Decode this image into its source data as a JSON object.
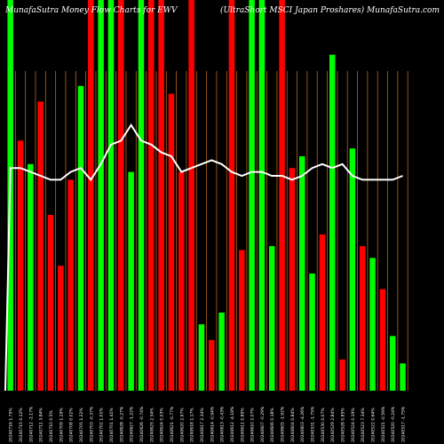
{
  "header": {
    "left": "MunafaSutra  Money Flow  Charts for EWV",
    "right": "(UltraShort MSCI Japan  Proshares) MunafaSutra.com"
  },
  "chart_data": {
    "type": "bar",
    "title": "MunafaSutra  Money Flow  Charts for EWV",
    "subtitle": "(UltraShort MSCI Japan  Proshares) MunafaSutra.com",
    "ylim": [
      0,
      100
    ],
    "categories": [
      "20240716 1.75%",
      "20240715 0.12%",
      "20240712 -2.17%",
      "20240711 3.84%",
      "20240710 0.5%",
      "20240709 1.19%",
      "20240708 0.02%",
      "20240705 1.22%",
      "20240703 -0.37%",
      "20240702 1.01%",
      "20240701 1.41%",
      "20240628 -0.27%",
      "20240627 -1.22%",
      "20240626 -0.74%",
      "20240625 2.54%",
      "20240624 0.03%",
      "20240621 -0.77%",
      "20240620 2.97%",
      "20240618 1.17%",
      "20240617 2.34%",
      "20240614 -0.94%",
      "20240613 -0.43%",
      "20240612 -4.18%",
      "20240611 0.89%",
      "20240610 2.07%",
      "20240607 -0.29%",
      "20240606 0.18%",
      "20240605 -1.92%",
      "20240604 0.84%",
      "20240603 -4.26%",
      "20240531 -1.75%",
      "20240530 0.07%",
      "20240529 2.84%",
      "20240528 0.85%",
      "20240524 0.19%",
      "20240523 7.34%",
      "20240522 0.64%",
      "20240521 -0.59%",
      "20240520 -0.24%",
      "20240517 -1.75%"
    ],
    "series": [
      {
        "values": [
          100,
          64,
          58,
          74,
          45,
          32,
          54,
          78,
          100,
          100,
          100,
          100,
          56,
          100,
          100,
          100,
          76,
          56,
          100,
          17,
          13,
          20,
          100,
          36,
          100,
          100,
          37,
          100,
          57,
          60,
          30,
          40,
          86,
          8,
          62,
          37,
          34,
          26,
          14,
          7
        ],
        "directions": [
          "up",
          "down",
          "up",
          "down",
          "down",
          "down",
          "down",
          "up",
          "down",
          "up",
          "up",
          "down",
          "up",
          "up",
          "down",
          "down",
          "down",
          "down",
          "down",
          "up",
          "down",
          "up",
          "down",
          "down",
          "up",
          "up",
          "up",
          "down",
          "down",
          "up",
          "up",
          "down",
          "up",
          "down",
          "up",
          "down",
          "up",
          "down",
          "up",
          "up"
        ],
        "colors": {
          "up": "#00ff00",
          "down": "#ff0000"
        }
      },
      {
        "name": "",
        "type": "line",
        "color": "#ffffff",
        "values": [
          57,
          57,
          56,
          55,
          54,
          54,
          56,
          57,
          54,
          58,
          63,
          64,
          68,
          64,
          63,
          61,
          60,
          56,
          57,
          58,
          59,
          58,
          56,
          55,
          56,
          56,
          55,
          55,
          54,
          55,
          57,
          58,
          57,
          58,
          55,
          54,
          54,
          54,
          54,
          55
        ]
      }
    ],
    "grid": "vertical",
    "grid_color": "#b8651a",
    "background": "#000000"
  }
}
